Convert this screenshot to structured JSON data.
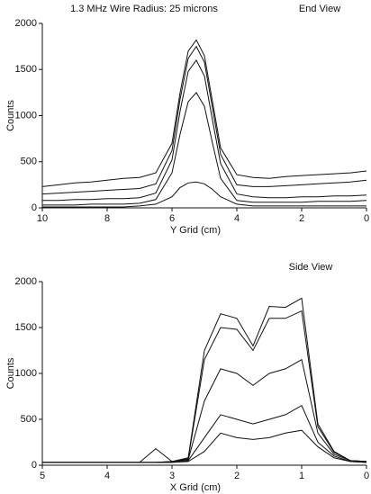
{
  "chart_data": [
    {
      "type": "line",
      "title": "1.3 MHz  Wire Radius:  25  microns",
      "annotation": "End View",
      "xlabel": "Y Grid  (cm)",
      "ylabel": "Counts",
      "x": [
        10,
        9.5,
        9,
        8.5,
        8,
        7.5,
        7,
        6.5,
        6,
        5.75,
        5.5,
        5.25,
        5,
        4.75,
        4.5,
        4,
        3.5,
        3,
        2.5,
        2,
        1.5,
        1,
        0.5,
        0
      ],
      "series": [
        {
          "color": "#111111",
          "values": [
            230,
            250,
            270,
            280,
            300,
            320,
            330,
            380,
            700,
            1250,
            1700,
            1820,
            1650,
            1150,
            650,
            360,
            330,
            320,
            340,
            350,
            360,
            370,
            380,
            400
          ]
        },
        {
          "color": "#111111",
          "values": [
            150,
            160,
            170,
            180,
            190,
            200,
            210,
            260,
            620,
            1180,
            1620,
            1750,
            1580,
            1080,
            580,
            250,
            230,
            230,
            240,
            250,
            260,
            270,
            280,
            300
          ]
        },
        {
          "color": "#111111",
          "values": [
            80,
            80,
            90,
            90,
            100,
            100,
            110,
            160,
            520,
            1050,
            1480,
            1600,
            1430,
            950,
            480,
            150,
            120,
            110,
            110,
            120,
            120,
            130,
            130,
            140
          ]
        },
        {
          "color": "#111111",
          "values": [
            30,
            30,
            30,
            40,
            40,
            40,
            50,
            90,
            380,
            800,
            1150,
            1250,
            1100,
            700,
            320,
            80,
            60,
            60,
            60,
            60,
            70,
            70,
            70,
            80
          ]
        },
        {
          "color": "#111111",
          "values": [
            10,
            10,
            10,
            10,
            10,
            10,
            20,
            40,
            120,
            220,
            270,
            280,
            260,
            200,
            120,
            40,
            20,
            20,
            20,
            20,
            20,
            20,
            20,
            20
          ]
        }
      ],
      "xlim": [
        10,
        0
      ],
      "xticks": [
        10,
        8,
        6,
        4,
        2,
        0
      ],
      "ylim": [
        0,
        2000
      ],
      "yticks": [
        0,
        500,
        1000,
        1500,
        2000
      ]
    },
    {
      "type": "line",
      "annotation": "Side View",
      "xlabel": "X Grid  (cm)",
      "ylabel": "Counts",
      "x": [
        5,
        4.75,
        4.5,
        4.25,
        4,
        3.75,
        3.5,
        3.25,
        3,
        2.75,
        2.5,
        2.25,
        2,
        1.75,
        1.5,
        1.25,
        1,
        0.75,
        0.5,
        0.25,
        0
      ],
      "series": [
        {
          "color": "#111111",
          "values": [
            30,
            30,
            30,
            30,
            30,
            30,
            30,
            30,
            40,
            80,
            1250,
            1650,
            1600,
            1300,
            1730,
            1720,
            1820,
            450,
            150,
            50,
            40
          ]
        },
        {
          "color": "#111111",
          "values": [
            30,
            30,
            30,
            30,
            30,
            30,
            30,
            30,
            40,
            70,
            1150,
            1500,
            1480,
            1250,
            1600,
            1600,
            1680,
            420,
            140,
            50,
            40
          ]
        },
        {
          "color": "#111111",
          "values": [
            30,
            30,
            30,
            30,
            30,
            30,
            30,
            180,
            40,
            60,
            700,
            1050,
            1000,
            870,
            1000,
            1050,
            1150,
            350,
            120,
            50,
            40
          ]
        },
        {
          "color": "#111111",
          "values": [
            30,
            30,
            30,
            30,
            30,
            30,
            30,
            30,
            30,
            50,
            300,
            550,
            500,
            450,
            500,
            550,
            650,
            250,
            100,
            40,
            30
          ]
        },
        {
          "color": "#111111",
          "values": [
            30,
            30,
            30,
            30,
            30,
            30,
            30,
            30,
            30,
            40,
            150,
            350,
            300,
            280,
            300,
            350,
            380,
            200,
            80,
            40,
            30
          ]
        }
      ],
      "xlim": [
        5,
        0
      ],
      "xticks": [
        5,
        4,
        3,
        2,
        1,
        0
      ],
      "ylim": [
        0,
        2000
      ],
      "yticks": [
        0,
        500,
        1000,
        1500,
        2000
      ]
    }
  ]
}
